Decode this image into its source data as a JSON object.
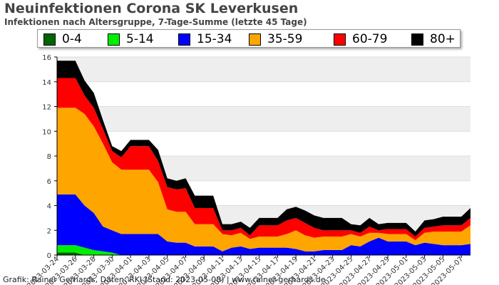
{
  "header": {
    "title": "Neuinfektionen Corona SK Leverkusen",
    "subtitle": "Infektionen nach Altersgruppe, 7-Tage-Summe (letzte 45 Tage)"
  },
  "footer": {
    "credit": "Grafik: Rainer Gerhards, Daten: RKI (Stand: 2023-05-08) | www.rainer-gerhards.de"
  },
  "chart_data": {
    "type": "area",
    "stacked": true,
    "title": "Neuinfektionen Corona SK Leverkusen",
    "subtitle": "Infektionen nach Altersgruppe, 7-Tage-Summe (letzte 45 Tage)",
    "ylim": [
      0,
      16
    ],
    "yticks": [
      "0",
      "2",
      "4",
      "6",
      "8",
      "10",
      "12",
      "14",
      "16"
    ],
    "x": [
      "2023-03-24",
      "2023-03-25",
      "2023-03-26",
      "2023-03-27",
      "2023-03-28",
      "2023-03-29",
      "2023-03-30",
      "2023-03-31",
      "2023-04-01",
      "2023-04-02",
      "2023-04-03",
      "2023-04-04",
      "2023-04-05",
      "2023-04-06",
      "2023-04-07",
      "2023-04-08",
      "2023-04-09",
      "2023-04-10",
      "2023-04-11",
      "2023-04-12",
      "2023-04-13",
      "2023-04-14",
      "2023-04-15",
      "2023-04-16",
      "2023-04-17",
      "2023-04-18",
      "2023-04-19",
      "2023-04-20",
      "2023-04-21",
      "2023-04-22",
      "2023-04-23",
      "2023-04-24",
      "2023-04-25",
      "2023-04-26",
      "2023-04-27",
      "2023-04-28",
      "2023-04-29",
      "2023-04-30",
      "2023-05-01",
      "2023-05-02",
      "2023-05-03",
      "2023-05-04",
      "2023-05-05",
      "2023-05-06",
      "2023-05-07",
      "2023-05-08"
    ],
    "xtick_labels": [
      "2023-03-24",
      "2023-03-26",
      "2023-03-28",
      "2023-03-30",
      "2023-04-01",
      "2023-04-03",
      "2023-04-05",
      "2023-04-07",
      "2023-04-09",
      "2023-04-11",
      "2023-04-13",
      "2023-04-15",
      "2023-04-17",
      "2023-04-19",
      "2023-04-21",
      "2023-04-23",
      "2023-04-25",
      "2023-04-27",
      "2023-04-29",
      "2023-05-01",
      "2023-05-03",
      "2023-05-05",
      "2023-05-07"
    ],
    "grid": true,
    "legend_position": "top",
    "series": [
      {
        "name": "0-4",
        "color": "#006400",
        "values": [
          0.2,
          0.2,
          0.2,
          0,
          0,
          0,
          0,
          0,
          0,
          0,
          0,
          0,
          0,
          0,
          0,
          0,
          0,
          0,
          0,
          0,
          0,
          0,
          0,
          0,
          0,
          0,
          0,
          0,
          0,
          0,
          0,
          0,
          0,
          0,
          0,
          0,
          0,
          0,
          0,
          0,
          0,
          0,
          0,
          0,
          0,
          0
        ]
      },
      {
        "name": "5-14",
        "color": "#00ee00",
        "values": [
          0.6,
          0.6,
          0.6,
          0.6,
          0.4,
          0.3,
          0.2,
          0,
          0,
          0,
          0,
          0,
          0,
          0,
          0,
          0,
          0,
          0,
          0,
          0,
          0,
          0,
          0,
          0,
          0,
          0,
          0,
          0,
          0,
          0,
          0,
          0,
          0,
          0,
          0,
          0,
          0,
          0,
          0,
          0,
          0,
          0,
          0,
          0,
          0,
          0
        ]
      },
      {
        "name": "15-34",
        "color": "#0000ff",
        "values": [
          4.1,
          4.1,
          4.1,
          3.4,
          3.0,
          2.0,
          1.8,
          1.7,
          1.7,
          1.7,
          1.7,
          1.7,
          1.1,
          1.0,
          1.0,
          0.7,
          0.7,
          0.7,
          0.3,
          0.6,
          0.7,
          0.5,
          0.6,
          0.6,
          0.6,
          0.6,
          0.5,
          0.3,
          0.3,
          0.4,
          0.4,
          0.4,
          0.8,
          0.7,
          1.1,
          1.4,
          1.1,
          1.1,
          1.1,
          0.8,
          1.0,
          0.9,
          0.8,
          0.8,
          0.8,
          0.9
        ]
      },
      {
        "name": "35-59",
        "color": "#ffa500",
        "values": [
          7.0,
          7.0,
          7.0,
          7.4,
          7.0,
          6.7,
          5.5,
          5.2,
          5.2,
          5.2,
          5.2,
          4.2,
          2.6,
          2.5,
          2.5,
          1.8,
          1.8,
          1.8,
          1.4,
          1.0,
          1.1,
          0.8,
          0.9,
          0.9,
          0.9,
          1.1,
          1.5,
          1.3,
          1.1,
          1.1,
          1.1,
          1.1,
          0.9,
          0.8,
          0.7,
          0.4,
          0.6,
          0.6,
          0.6,
          0.4,
          0.8,
          1.0,
          1.1,
          1.1,
          1.1,
          1.5
        ]
      },
      {
        "name": "60-79",
        "color": "#ff0000",
        "values": [
          2.4,
          2.4,
          2.4,
          1.5,
          1.5,
          1.2,
          0.9,
          1.0,
          1.9,
          1.9,
          1.9,
          1.7,
          1.8,
          1.8,
          1.9,
          1.3,
          1.3,
          1.3,
          0.3,
          0.4,
          0.4,
          0.3,
          0.9,
          0.9,
          0.9,
          1.1,
          1.0,
          1.0,
          0.8,
          0.5,
          0.5,
          0.5,
          0.3,
          0.3,
          0.5,
          0.2,
          0.4,
          0.4,
          0.4,
          0.3,
          0.4,
          0.4,
          0.5,
          0.5,
          0.5,
          0.6
        ]
      },
      {
        "name": "80+",
        "color": "#000000",
        "values": [
          1.4,
          1.4,
          1.4,
          1.2,
          1.2,
          0.7,
          0.4,
          0.5,
          0.5,
          0.5,
          0.5,
          0.9,
          0.7,
          0.7,
          0.8,
          1.0,
          1.0,
          1.0,
          0.5,
          0.5,
          0.5,
          0.6,
          0.6,
          0.6,
          0.6,
          0.9,
          0.9,
          1.0,
          1.0,
          1.0,
          1.0,
          1.0,
          0.5,
          0.6,
          0.7,
          0.5,
          0.5,
          0.5,
          0.5,
          0.4,
          0.6,
          0.6,
          0.7,
          0.7,
          0.7,
          0.8
        ]
      }
    ]
  }
}
